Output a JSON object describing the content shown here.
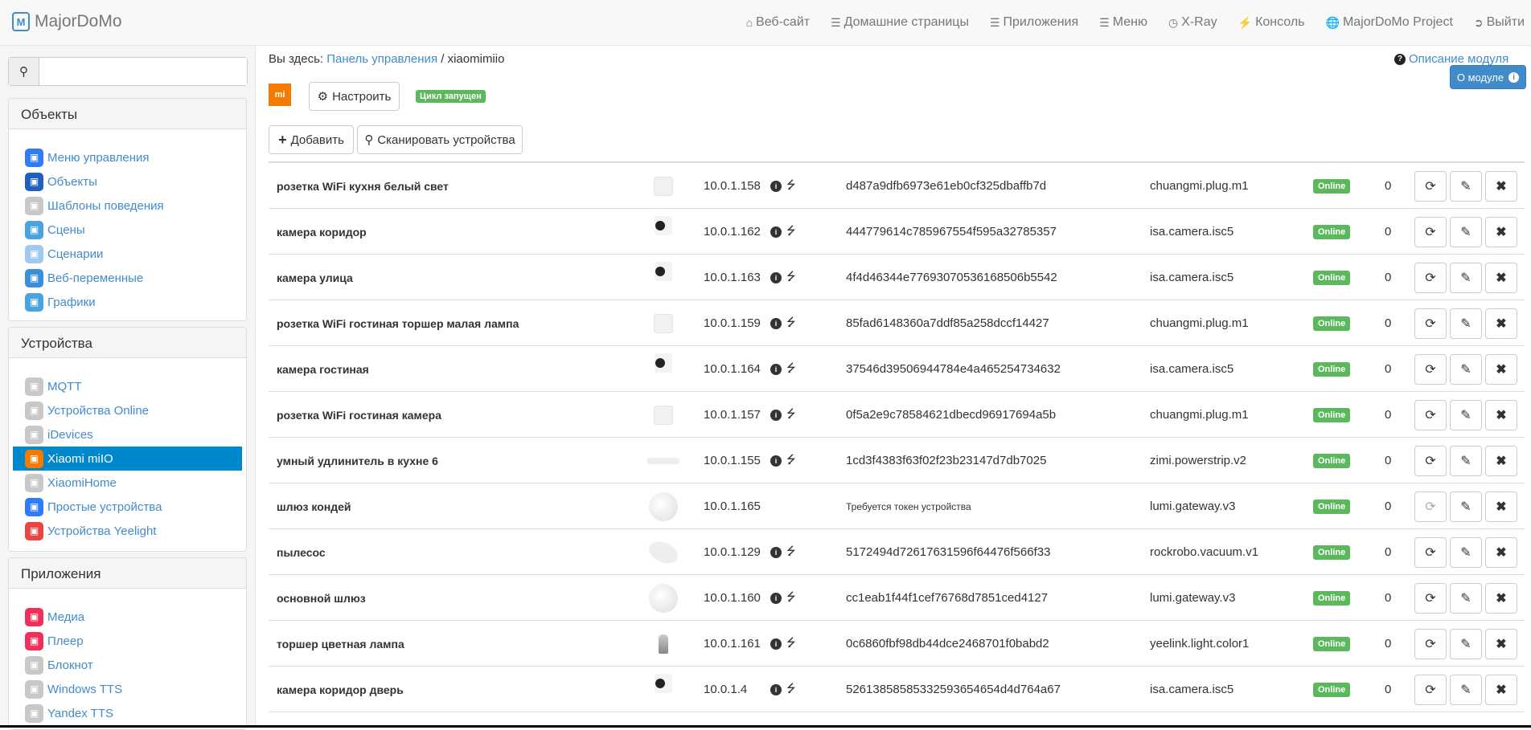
{
  "navbar": {
    "brand": "MajorDoMo",
    "items": [
      {
        "label": "Веб-сайт",
        "icon": "home-icon"
      },
      {
        "label": "Домашние страницы",
        "icon": "list-icon"
      },
      {
        "label": "Приложения",
        "icon": "list-icon"
      },
      {
        "label": "Меню",
        "icon": "list-icon"
      },
      {
        "label": "X-Ray",
        "icon": "dashboard-icon"
      },
      {
        "label": "Консоль",
        "icon": "bolt-icon"
      },
      {
        "label": "MajorDoMo Project",
        "icon": "globe-icon"
      },
      {
        "label": "Выйти",
        "icon": "logout-icon"
      }
    ]
  },
  "sidebar": {
    "search": {
      "value": "",
      "placeholder": ""
    },
    "panels": [
      {
        "title": "Объекты",
        "items": [
          {
            "label": "Меню управления",
            "color": "#2f7cf6"
          },
          {
            "label": "Объекты",
            "color": "#1f5fbf"
          },
          {
            "label": "Шаблоны поведения",
            "color": "#c8c8c8"
          },
          {
            "label": "Сцены",
            "color": "#4aa3e0"
          },
          {
            "label": "Сценарии",
            "color": "#9fc9ee"
          },
          {
            "label": "Веб-переменные",
            "color": "#3b8fd8"
          },
          {
            "label": "Графики",
            "color": "#4aa3e0"
          }
        ]
      },
      {
        "title": "Устройства",
        "items": [
          {
            "label": "MQTT",
            "color": "#c8c8c8"
          },
          {
            "label": "Устройства Online",
            "color": "#c8c8c8"
          },
          {
            "label": "iDevices",
            "color": "#c8c8c8"
          },
          {
            "label": "Xiaomi miIO",
            "color": "#f57a00",
            "active": true
          },
          {
            "label": "XiaomiHome",
            "color": "#c8c8c8"
          },
          {
            "label": "Простые устройства",
            "color": "#2f7cf6"
          },
          {
            "label": "Устройства Yeelight",
            "color": "#e84545"
          }
        ]
      },
      {
        "title": "Приложения",
        "items": [
          {
            "label": "Медиа",
            "color": "#f0305a"
          },
          {
            "label": "Плеер",
            "color": "#f0305a"
          },
          {
            "label": "Блокнот",
            "color": "#c8c8c8"
          },
          {
            "label": "Windows TTS",
            "color": "#c8c8c8"
          },
          {
            "label": "Yandex TTS",
            "color": "#c8c8c8"
          }
        ]
      }
    ]
  },
  "main": {
    "breadcrumb": {
      "prefix": "Вы здесь:",
      "link": "Панель управления",
      "sep": "/",
      "current": "xiaomimiio"
    },
    "module_description": "Описание модуля",
    "about_button": "О модуле",
    "configure_button": "Настроить",
    "cycle_status": "Цикл запущен",
    "add_button": "Добавить",
    "scan_button": "Сканировать устройства",
    "devices": [
      {
        "name": "розетка WiFi кухня белый свет",
        "image": "plug",
        "ip": "10.0.1.158",
        "info": true,
        "token": "d487a9dfb6973e61eb0cf325dbaffb7d",
        "model": "chuangmi.plug.m1",
        "status": "Online",
        "count": "0"
      },
      {
        "name": "камера коридор",
        "image": "camera",
        "ip": "10.0.1.162",
        "info": true,
        "token": "444779614c785967554f595a32785357",
        "model": "isa.camera.isc5",
        "status": "Online",
        "count": "0"
      },
      {
        "name": "камера улица",
        "image": "camera",
        "ip": "10.0.1.163",
        "info": true,
        "token": "4f4d46344e77693070536168506b5542",
        "model": "isa.camera.isc5",
        "status": "Online",
        "count": "0"
      },
      {
        "name": "розетка WiFi гостиная торшер малая лампа",
        "image": "plug",
        "ip": "10.0.1.159",
        "info": true,
        "token": "85fad6148360a7ddf85a258dccf14427",
        "model": "chuangmi.plug.m1",
        "status": "Online",
        "count": "0"
      },
      {
        "name": "камера гостиная",
        "image": "camera",
        "ip": "10.0.1.164",
        "info": true,
        "token": "37546d39506944784e4a465254734632",
        "model": "isa.camera.isc5",
        "status": "Online",
        "count": "0"
      },
      {
        "name": "розетка WiFi гостиная камера",
        "image": "plug",
        "ip": "10.0.1.157",
        "info": true,
        "token": "0f5a2e9c78584621dbecd96917694a5b",
        "model": "chuangmi.plug.m1",
        "status": "Online",
        "count": "0"
      },
      {
        "name": "умный удлинитель в кухне 6",
        "image": "strip",
        "ip": "10.0.1.155",
        "info": true,
        "token": "1cd3f4383f63f02f23b23147d7db7025",
        "model": "zimi.powerstrip.v2",
        "status": "Online",
        "count": "0"
      },
      {
        "name": "шлюз кондей",
        "image": "gateway",
        "ip": "10.0.1.165",
        "info": false,
        "token": "Требуется токен устройства",
        "token_missing": true,
        "model": "lumi.gateway.v3",
        "status": "Online",
        "count": "0"
      },
      {
        "name": "пылесос",
        "image": "vacuum",
        "ip": "10.0.1.129",
        "info": true,
        "token": "5172494d72617631596f64476f566f33",
        "model": "rockrobo.vacuum.v1",
        "status": "Online",
        "count": "0"
      },
      {
        "name": "основной шлюз",
        "image": "gateway",
        "ip": "10.0.1.160",
        "info": true,
        "token": "cc1eab1f44f1cef76768d7851ced4127",
        "model": "lumi.gateway.v3",
        "status": "Online",
        "count": "0"
      },
      {
        "name": "торшер цветная лампа",
        "image": "bulb",
        "ip": "10.0.1.161",
        "info": true,
        "token": "0c6860fbf98db44dce2468701f0babd2",
        "model": "yeelink.light.color1",
        "status": "Online",
        "count": "0"
      },
      {
        "name": "камера коридор дверь",
        "image": "camera",
        "ip": "10.0.1.4",
        "info": true,
        "token": "52613858585332593654654d4d764a67",
        "model": "isa.camera.isc5",
        "status": "Online",
        "count": "0"
      }
    ]
  },
  "colors": {
    "accent": "#428bca",
    "active": "#0088cc",
    "online": "#5cb85c",
    "xiaomi": "#f57a00"
  }
}
